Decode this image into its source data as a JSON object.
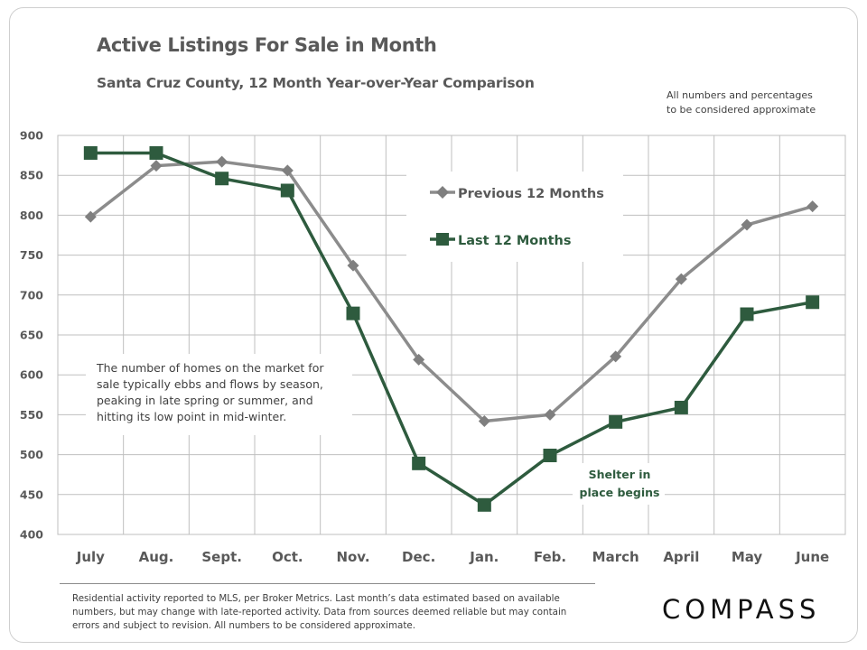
{
  "title": "Active Listings For Sale in Month",
  "subtitle": "Santa Cruz County, 12 Month Year-over-Year  Comparison",
  "disclaimer": [
    "All numbers and percentages",
    "to be considered approximate"
  ],
  "annotation_note": [
    "The number of homes on the market for",
    "sale typically ebbs and flows by season,",
    "peaking in late spring or summer, and",
    "hitting its low point in mid-winter."
  ],
  "annotation_shelter": [
    "Shelter in",
    "place  begins"
  ],
  "footnote": "Residential activity reported to MLS, per Broker Metrics. Last month’s data estimated based on available numbers, but may change with late-reported activity. Data from sources deemed reliable but may contain errors and subject to revision. All numbers to be considered approximate.",
  "logo": "COMPASS",
  "colors": {
    "previous": "#8c8c8c",
    "last": "#2e5b3e",
    "shelter_text": "#2e5b3e",
    "grid": "#bfbfbf",
    "text": "#595959"
  },
  "chart_data": {
    "type": "line",
    "categories": [
      "July",
      "Aug.",
      "Sept.",
      "Oct.",
      "Nov.",
      "Dec.",
      "Jan.",
      "Feb.",
      "March",
      "April",
      "May",
      "June"
    ],
    "yticks": [
      400,
      450,
      500,
      550,
      600,
      650,
      700,
      750,
      800,
      850,
      900
    ],
    "ylim": [
      400,
      900
    ],
    "grid": true,
    "legend_position": "top-center",
    "series": [
      {
        "name": "Previous 12 Months",
        "marker": "diamond",
        "values": [
          798,
          862,
          867,
          856,
          737,
          619,
          542,
          550,
          623,
          720,
          788,
          811
        ]
      },
      {
        "name": "Last 12 Months",
        "marker": "square",
        "values": [
          878,
          878,
          846,
          831,
          677,
          489,
          437,
          499,
          541,
          559,
          676,
          691
        ]
      }
    ]
  }
}
